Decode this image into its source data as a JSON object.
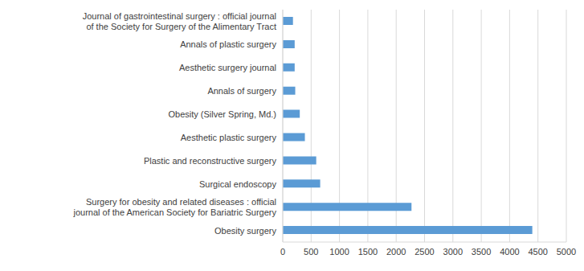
{
  "chart_data": {
    "type": "bar",
    "orientation": "horizontal",
    "categories": [
      "Journal of gastrointestinal surgery : official journal of the Society for Surgery of the Alimentary Tract",
      "Annals of plastic surgery",
      "Aesthetic surgery journal",
      "Annals of surgery",
      "Obesity (Silver Spring, Md.)",
      "Aesthetic plastic surgery",
      "Plastic and reconstructive surgery",
      "Surgical endoscopy",
      "Surgery for obesity and related diseases : official journal of the American Society for Bariatric Surgery",
      "Obesity surgery"
    ],
    "values": [
      180,
      210,
      210,
      220,
      300,
      390,
      590,
      660,
      2270,
      4400
    ],
    "color": "#5b9bd5",
    "xlim": [
      0,
      5000
    ],
    "xticks": [
      0,
      500,
      1000,
      1500,
      2000,
      2500,
      3000,
      3500,
      4000,
      4500,
      5000
    ],
    "grid": true
  }
}
